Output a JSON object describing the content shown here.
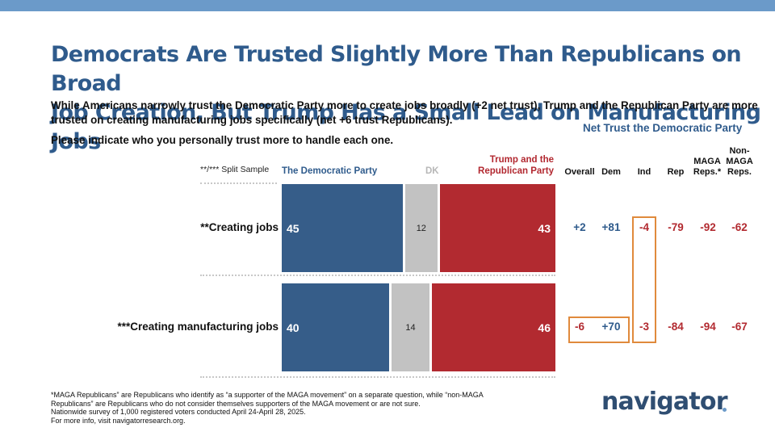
{
  "header": {
    "title_line1": "Democrats Are Trusted Slightly More Than Republicans on Broad",
    "title_line2": "Job Creation, But Trump Has a Small Lead on Manufacturing Jobs",
    "subtitle": "While Americans narrowly trust the Democratic Party more to create jobs broadly (+2 net trust), Trump and the Republican Party are more trusted on creating manufacturing jobs specifically (net +6 trust Republicans).",
    "question": "Please indicate who you personally trust more to handle each one."
  },
  "net_trust_header": "Net Trust the Democratic Party",
  "split_sample_label": "**/*** Split Sample",
  "legend": {
    "dem": "The Democratic Party",
    "dk": "DK",
    "rep": "Trump and the Republican Party"
  },
  "columns": [
    "Overall",
    "Dem",
    "Ind",
    "Rep",
    "MAGA Reps.*",
    "Non-MAGA Reps."
  ],
  "chart_data": {
    "type": "bar",
    "orientation": "horizontal-stacked",
    "categories": [
      "**Creating jobs",
      "***Creating manufacturing jobs"
    ],
    "series": [
      {
        "name": "The Democratic Party",
        "values": [
          45,
          40
        ],
        "color": "#365d89"
      },
      {
        "name": "DK",
        "values": [
          12,
          14
        ],
        "color": "#c2c2c2"
      },
      {
        "name": "Trump and the Republican Party",
        "values": [
          43,
          46
        ],
        "color": "#b22a30"
      }
    ],
    "net_trust": [
      [
        "+2",
        "+81",
        "-4",
        "-79",
        "-92",
        "-62"
      ],
      [
        "-6",
        "+70",
        "-3",
        "-84",
        "-94",
        "-67"
      ]
    ],
    "highlighted": [
      "0.2",
      "1.0",
      "1.1",
      "1.2"
    ]
  },
  "colors": {
    "accent": "#2f5b8c",
    "dem": "#365d89",
    "rep": "#b22a30",
    "dk": "#c2c2c2",
    "highlight": "#e08a3c",
    "topbar": "#6b9ac9"
  },
  "footer": {
    "line1": "*MAGA Republicans” are Republicans who identify as “a supporter of the MAGA movement” on a separate question, while “non-MAGA Republicans” are Republicans who do not consider themselves supporters of the MAGA movement or are not sure.",
    "line2": "Nationwide survey of 1,000 registered voters conducted April 24-April 28, 2025.",
    "line3": "For more info, visit navigatorresearch.org."
  },
  "logo": "navigator"
}
